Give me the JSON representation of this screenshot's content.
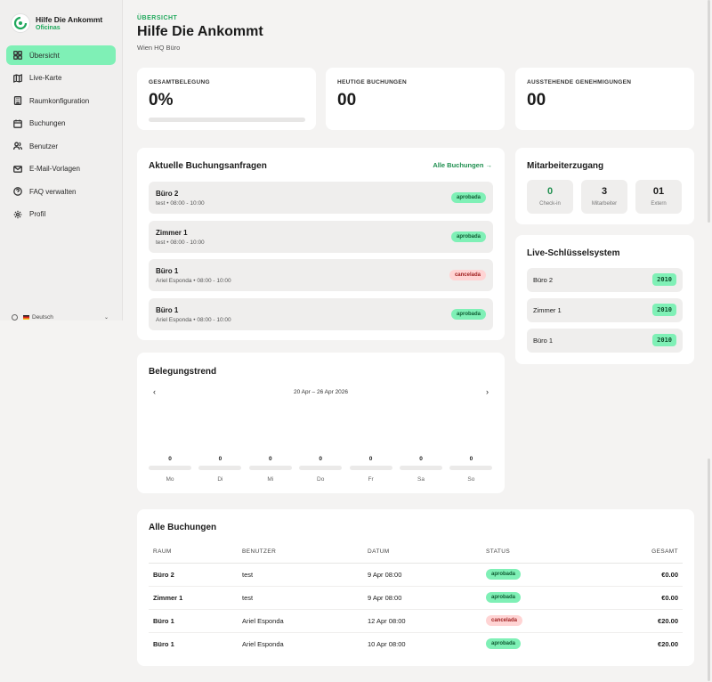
{
  "brand": {
    "title": "Hilfe Die Ankommt",
    "subtitle": "Oficinas"
  },
  "sidebar": {
    "items": [
      {
        "label": "Übersicht",
        "icon": "grid-icon",
        "active": true
      },
      {
        "label": "Live-Karte",
        "icon": "map-icon"
      },
      {
        "label": "Raumkonfiguration",
        "icon": "building-icon"
      },
      {
        "label": "Buchungen",
        "icon": "calendar-icon"
      },
      {
        "label": "Benutzer",
        "icon": "users-icon"
      },
      {
        "label": "E-Mail-Vorlagen",
        "icon": "mail-icon"
      },
      {
        "label": "FAQ verwalten",
        "icon": "help-circle-icon"
      },
      {
        "label": "Profil",
        "icon": "gear-icon"
      }
    ],
    "language": "Deutsch"
  },
  "header": {
    "eyebrow": "ÜBERSICHT",
    "title": "Hilfe Die Ankommt",
    "subtitle": "Wien HQ Büro"
  },
  "stats": {
    "occupancy": {
      "label": "GESAMTBELEGUNG",
      "value": "0%",
      "progress": 0
    },
    "today": {
      "label": "HEUTIGE BUCHUNGEN",
      "value": "00"
    },
    "pending": {
      "label": "AUSSTEHENDE GENEHMIGUNGEN",
      "value": "00"
    }
  },
  "requests": {
    "title": "Aktuelle Buchungsanfragen",
    "link": "Alle Buchungen →",
    "items": [
      {
        "name": "Büro 2",
        "meta": "test • 08:00 - 10:00",
        "status": "aprobada",
        "type": "ok"
      },
      {
        "name": "Zimmer 1",
        "meta": "test • 08:00 - 10:00",
        "status": "aprobada",
        "type": "ok"
      },
      {
        "name": "Büro 1",
        "meta": "Ariel Esponda • 08:00 - 10:00",
        "status": "cancelada",
        "type": "bad"
      },
      {
        "name": "Büro 1",
        "meta": "Ariel Esponda • 08:00 - 10:00",
        "status": "aprobada",
        "type": "ok"
      }
    ]
  },
  "access": {
    "title": "Mitarbeiterzugang",
    "boxes": [
      {
        "value": "0",
        "label": "Check-in"
      },
      {
        "value": "3",
        "label": "Mitarbeiter"
      },
      {
        "value": "01",
        "label": "Extern"
      }
    ]
  },
  "keys": {
    "title": "Live-Schlüsselsystem",
    "items": [
      {
        "name": "Büro 2",
        "code": "2010"
      },
      {
        "name": "Zimmer 1",
        "code": "2010"
      },
      {
        "name": "Büro 1",
        "code": "2010"
      }
    ]
  },
  "trend": {
    "title": "Belegungstrend",
    "range": "20 Apr – 26 Apr 2026",
    "prev": "‹",
    "next": "›"
  },
  "chart_data": {
    "type": "bar",
    "categories": [
      "Mo",
      "Di",
      "Mi",
      "Do",
      "Fr",
      "Sa",
      "So"
    ],
    "values": [
      0,
      0,
      0,
      0,
      0,
      0,
      0
    ]
  },
  "bookings": {
    "title": "Alle Buchungen",
    "columns": [
      "RAUM",
      "BENUTZER",
      "DATUM",
      "STATUS",
      "GESAMT"
    ],
    "rows": [
      {
        "room": "Büro 2",
        "user": "test",
        "date": "9 Apr 08:00",
        "status": "aprobada",
        "type": "ok",
        "total": "€0.00"
      },
      {
        "room": "Zimmer 1",
        "user": "test",
        "date": "9 Apr 08:00",
        "status": "aprobada",
        "type": "ok",
        "total": "€0.00"
      },
      {
        "room": "Büro 1",
        "user": "Ariel Esponda",
        "date": "12 Apr 08:00",
        "status": "cancelada",
        "type": "bad",
        "total": "€20.00"
      },
      {
        "room": "Büro 1",
        "user": "Ariel Esponda",
        "date": "10 Apr 08:00",
        "status": "aprobada",
        "type": "ok",
        "total": "€20.00"
      }
    ]
  },
  "colors": {
    "accent": "#1fa85c",
    "accent_light": "#7ff0b6",
    "danger_bg": "#ffd4d4"
  }
}
